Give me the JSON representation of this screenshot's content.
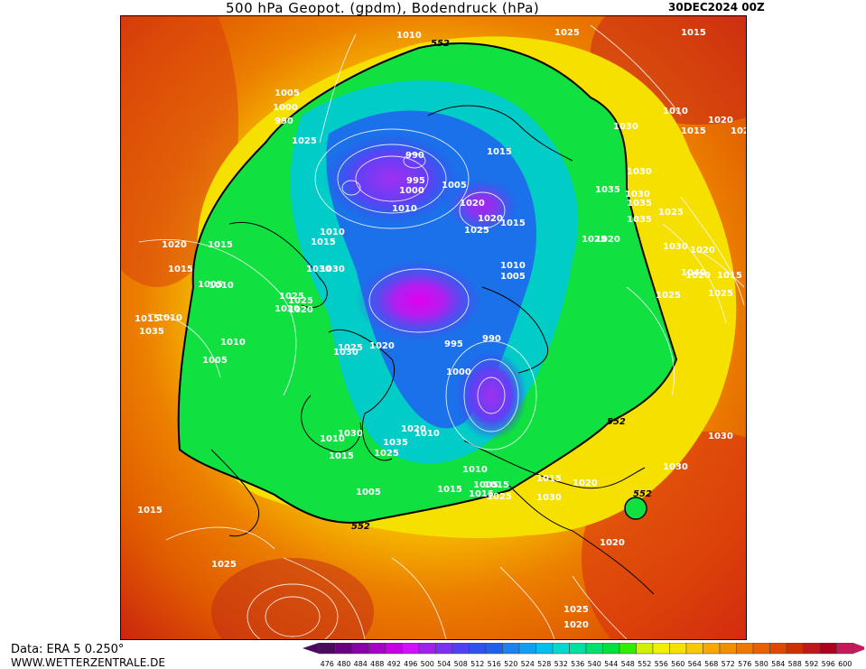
{
  "header": {
    "title": "500 hPa Geopot. (gpdm), Bodendruck (hPa)",
    "datestamp": "30DEC2024 00Z"
  },
  "footer": {
    "source": "Data: ERA 5 0.250°",
    "website": "WWW.WETTERZENTRALE.DE"
  },
  "colorbar": {
    "ticks": [
      "476",
      "480",
      "484",
      "488",
      "492",
      "496",
      "500",
      "504",
      "508",
      "512",
      "516",
      "520",
      "524",
      "528",
      "532",
      "536",
      "540",
      "544",
      "548",
      "552",
      "556",
      "560",
      "564",
      "568",
      "572",
      "576",
      "580",
      "584",
      "588",
      "592",
      "596",
      "600"
    ],
    "colors": [
      "#4a0a5e",
      "#6a0080",
      "#8a00a8",
      "#a800c8",
      "#c800e6",
      "#d010ff",
      "#a020f0",
      "#7a30f5",
      "#5040f5",
      "#3050f0",
      "#2060ee",
      "#1f80f0",
      "#10a0f0",
      "#00c0ec",
      "#00d8d0",
      "#00e0a0",
      "#00e070",
      "#00e040",
      "#30ee00",
      "#d0f000",
      "#f0f000",
      "#f6e000",
      "#f8c800",
      "#f8a800",
      "#f09000",
      "#ec7800",
      "#e86000",
      "#e04800",
      "#d03000",
      "#c01818",
      "#b00020",
      "#c8185a"
    ]
  },
  "map": {
    "geopotential_label_552": "552",
    "pressure_labels": [
      "1010",
      "1005",
      "1000",
      "990",
      "1025",
      "1020",
      "1015",
      "1015",
      "1010",
      "1005",
      "1025",
      "1030",
      "1020",
      "1015",
      "1010",
      "990",
      "995",
      "1000",
      "1010",
      "1005",
      "1015",
      "1020",
      "1025",
      "1015",
      "1020",
      "1010",
      "1005",
      "1030",
      "1025",
      "1020",
      "1025",
      "1015",
      "1010",
      "995",
      "990",
      "1000",
      "1030",
      "1020",
      "1025",
      "1035",
      "1030",
      "1025",
      "1035",
      "1030",
      "1025",
      "1020",
      "1035",
      "1030",
      "1040",
      "1025",
      "1020",
      "1015",
      "1025",
      "1020",
      "1010",
      "1005",
      "1015",
      "1010",
      "1005",
      "1010",
      "1035",
      "1030",
      "1025",
      "1020",
      "1015",
      "1015",
      "1010",
      "1010",
      "1005",
      "1030",
      "1015",
      "1030",
      "1015",
      "1025",
      "1015",
      "1020",
      "1030",
      "1020",
      "1020",
      "1025",
      "1020",
      "1015",
      "1020",
      "1030",
      "1035",
      "1015",
      "1025"
    ]
  }
}
